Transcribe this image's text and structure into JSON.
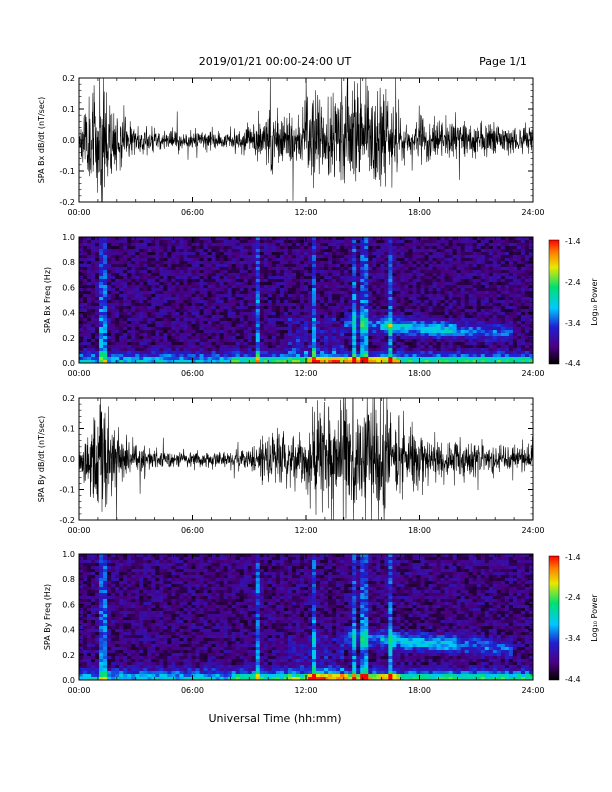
{
  "header": {
    "title": "2019/01/21  00:00-24:00 UT",
    "page": "Page 1/1"
  },
  "footer": {
    "xlabel": "Universal Time (hh:mm)"
  },
  "x_ticks": [
    "00:00",
    "06:00",
    "12:00",
    "18:00",
    "24:00"
  ],
  "colorbar": {
    "label": "Log₁₀ Power",
    "ticks": [
      "-1.4",
      "-2.4",
      "-3.4",
      "-4.4"
    ],
    "range": [
      -4.4,
      -1.4
    ],
    "colors": [
      "#000000",
      "#4b0082",
      "#2020d0",
      "#00c8ff",
      "#00e070",
      "#e8e800",
      "#ff8000",
      "#ff0000"
    ]
  },
  "chart_data": [
    {
      "type": "line",
      "id": "bx",
      "ylabel": "SPA Bx dB/dt (nT/sec)",
      "xlim": [
        0,
        24
      ],
      "ylim": [
        -0.2,
        0.2
      ],
      "y_ticks": [
        "0.2",
        "0.1",
        "0.0",
        "-0.1",
        "-0.2"
      ],
      "color": "#000000",
      "envelope": {
        "hours": [
          0,
          0.5,
          1,
          1.3,
          2,
          3,
          4,
          6,
          8,
          9,
          9.5,
          10,
          11,
          12,
          12.5,
          13,
          14,
          14.5,
          15,
          16,
          16.5,
          17,
          18,
          19,
          20,
          21,
          22,
          23,
          24
        ],
        "amplitude": [
          0.06,
          0.14,
          0.2,
          0.25,
          0.1,
          0.06,
          0.04,
          0.035,
          0.03,
          0.06,
          0.08,
          0.12,
          0.1,
          0.12,
          0.22,
          0.12,
          0.18,
          0.22,
          0.15,
          0.22,
          0.15,
          0.1,
          0.08,
          0.08,
          0.07,
          0.06,
          0.05,
          0.05,
          0.05
        ]
      }
    },
    {
      "type": "heatmap",
      "id": "bx-spec",
      "ylabel": "SPA Bx Freq (Hz)",
      "xlim": [
        0,
        24
      ],
      "ylim": [
        0,
        1.0
      ],
      "y_ticks": [
        "1.0",
        "0.8",
        "0.6",
        "0.4",
        "0.2",
        "0.0"
      ],
      "value_range": [
        -4.4,
        -1.4
      ],
      "features": {
        "vertical_streaks_hours": [
          1.2,
          1.4,
          9.5,
          12.5,
          14.5,
          15.1,
          16.4
        ],
        "band_center_hz": 0.28,
        "band_start_hour": 14,
        "band_end_hour": 23
      }
    },
    {
      "type": "line",
      "id": "by",
      "ylabel": "SPA By dB/dt (nT/sec)",
      "xlim": [
        0,
        24
      ],
      "ylim": [
        -0.2,
        0.2
      ],
      "y_ticks": [
        "0.2",
        "0.1",
        "0.0",
        "-0.1",
        "-0.2"
      ],
      "color": "#000000",
      "envelope": {
        "hours": [
          0,
          0.5,
          1,
          1.3,
          2,
          3,
          4,
          6,
          8,
          9,
          9.5,
          10,
          11,
          12,
          12.5,
          13,
          14,
          14.5,
          15,
          16,
          16.5,
          17,
          18,
          19,
          20,
          21,
          22,
          23,
          24
        ],
        "amplitude": [
          0.05,
          0.12,
          0.22,
          0.26,
          0.1,
          0.06,
          0.04,
          0.03,
          0.03,
          0.05,
          0.07,
          0.1,
          0.09,
          0.12,
          0.2,
          0.16,
          0.2,
          0.22,
          0.18,
          0.24,
          0.15,
          0.12,
          0.1,
          0.09,
          0.08,
          0.06,
          0.05,
          0.05,
          0.05
        ]
      }
    },
    {
      "type": "heatmap",
      "id": "by-spec",
      "ylabel": "SPA By Freq (Hz)",
      "xlim": [
        0,
        24
      ],
      "ylim": [
        0,
        1.0
      ],
      "y_ticks": [
        "1.0",
        "0.8",
        "0.6",
        "0.4",
        "0.2",
        "0.0"
      ],
      "value_range": [
        -4.4,
        -1.4
      ],
      "features": {
        "vertical_streaks_hours": [
          1.2,
          1.4,
          9.5,
          12.5,
          14.5,
          15.1,
          16.4
        ],
        "band_center_hz": 0.3,
        "band_start_hour": 14,
        "band_end_hour": 23
      }
    }
  ]
}
